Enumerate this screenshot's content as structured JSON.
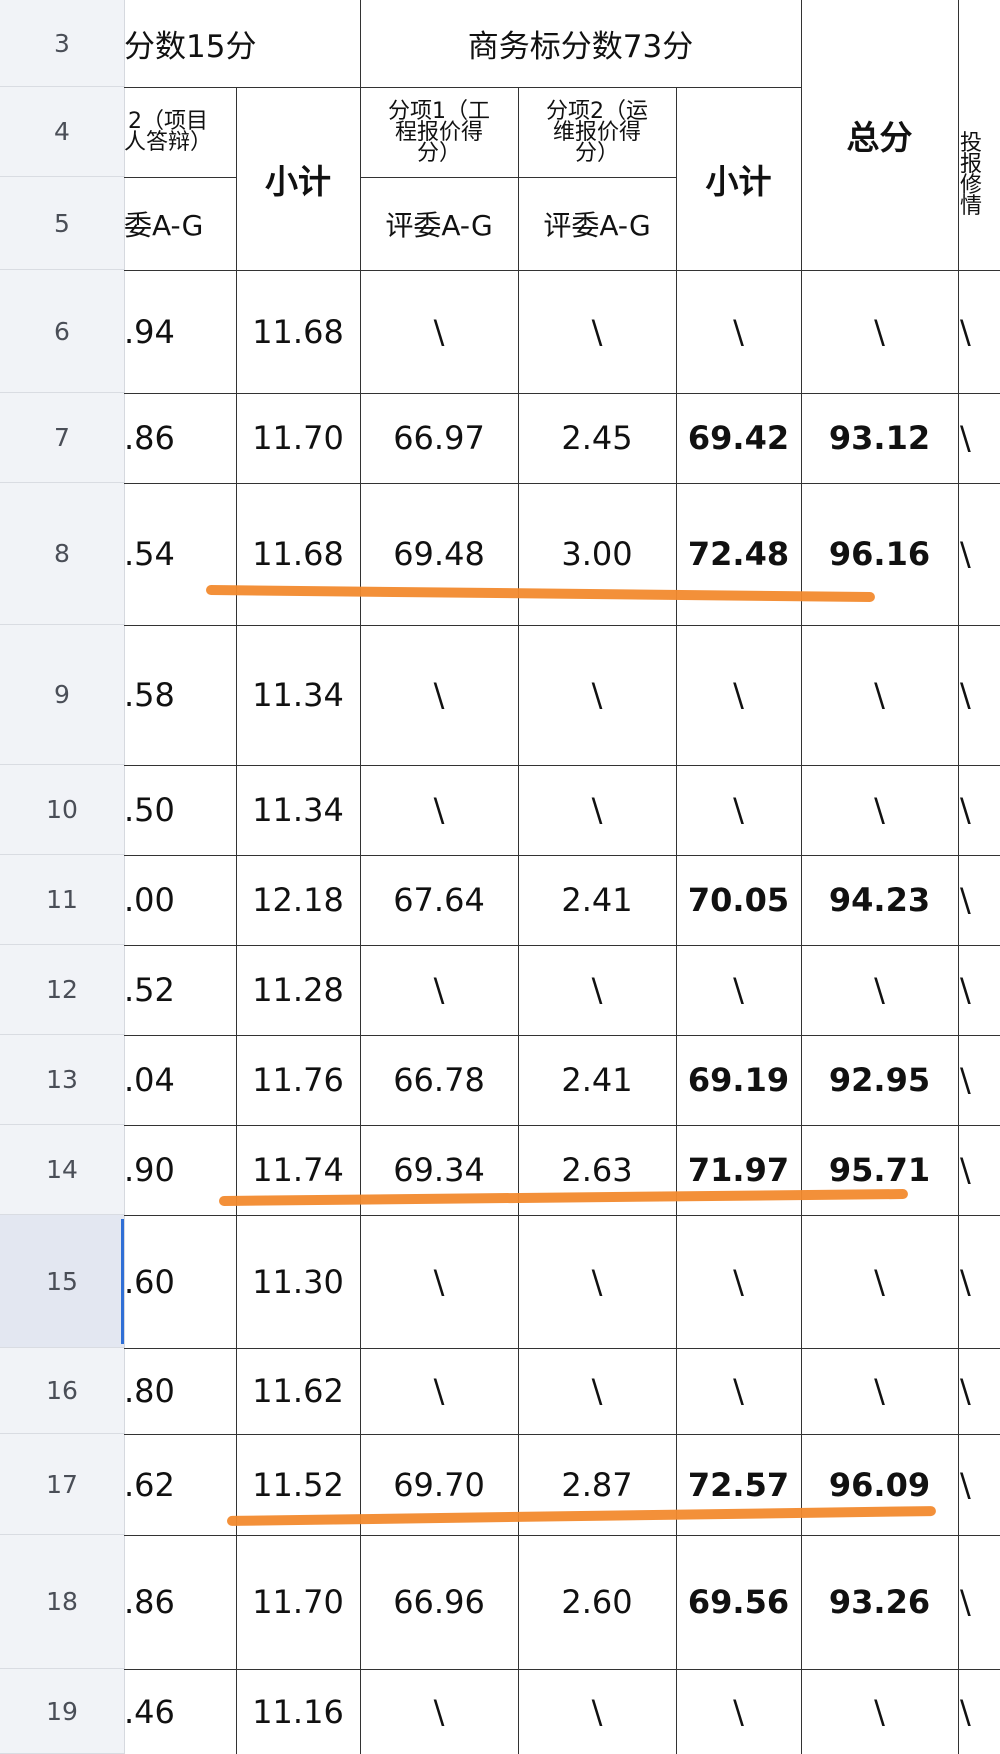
{
  "row_numbers": [
    "3",
    "4",
    "5",
    "6",
    "7",
    "8",
    "9",
    "10",
    "11",
    "12",
    "13",
    "14",
    "15",
    "16",
    "17",
    "18",
    "19"
  ],
  "selected_row": "15",
  "header": {
    "partial_score_group": "分数15分",
    "business_group": "商务标分数73分",
    "total": "总分",
    "partial_item2": "2（项目\n人答辩）",
    "subtotal": "小计",
    "item1": "分项1（工\n程报价得\n分）",
    "item2": "分项2（运\n维报价得\n分）",
    "last_col": "投\n报\n修\n情",
    "judges_partial": "委A-G",
    "judges": "评委A-G"
  },
  "rows": [
    {
      "row": "6",
      "a": ".94",
      "sub1": "11.68",
      "p1": "\\",
      "p2": "\\",
      "sub2": "\\",
      "total": "\\",
      "last": "\\"
    },
    {
      "row": "7",
      "a": ".86",
      "sub1": "11.70",
      "p1": "66.97",
      "p2": "2.45",
      "sub2": "69.42",
      "total": "93.12",
      "last": "\\"
    },
    {
      "row": "8",
      "a": ".54",
      "sub1": "11.68",
      "p1": "69.48",
      "p2": "3.00",
      "sub2": "72.48",
      "total": "96.16",
      "last": "\\"
    },
    {
      "row": "9",
      "a": ".58",
      "sub1": "11.34",
      "p1": "\\",
      "p2": "\\",
      "sub2": "\\",
      "total": "\\",
      "last": "\\"
    },
    {
      "row": "10",
      "a": ".50",
      "sub1": "11.34",
      "p1": "\\",
      "p2": "\\",
      "sub2": "\\",
      "total": "\\",
      "last": "\\"
    },
    {
      "row": "11",
      "a": ".00",
      "sub1": "12.18",
      "p1": "67.64",
      "p2": "2.41",
      "sub2": "70.05",
      "total": "94.23",
      "last": "\\"
    },
    {
      "row": "12",
      "a": ".52",
      "sub1": "11.28",
      "p1": "\\",
      "p2": "\\",
      "sub2": "\\",
      "total": "\\",
      "last": "\\"
    },
    {
      "row": "13",
      "a": ".04",
      "sub1": "11.76",
      "p1": "66.78",
      "p2": "2.41",
      "sub2": "69.19",
      "total": "92.95",
      "last": "\\"
    },
    {
      "row": "14",
      "a": ".90",
      "sub1": "11.74",
      "p1": "69.34",
      "p2": "2.63",
      "sub2": "71.97",
      "total": "95.71",
      "last": "\\"
    },
    {
      "row": "15",
      "a": ".60",
      "sub1": "11.30",
      "p1": "\\",
      "p2": "\\",
      "sub2": "\\",
      "total": "\\",
      "last": "\\"
    },
    {
      "row": "16",
      "a": ".80",
      "sub1": "11.62",
      "p1": "\\",
      "p2": "\\",
      "sub2": "\\",
      "total": "\\",
      "last": "\\"
    },
    {
      "row": "17",
      "a": ".62",
      "sub1": "11.52",
      "p1": "69.70",
      "p2": "2.87",
      "sub2": "72.57",
      "total": "96.09",
      "last": "\\"
    },
    {
      "row": "18",
      "a": ".86",
      "sub1": "11.70",
      "p1": "66.96",
      "p2": "2.60",
      "sub2": "69.56",
      "total": "93.26",
      "last": "\\"
    },
    {
      "row": "19",
      "a": ".46",
      "sub1": "11.16",
      "p1": "\\",
      "p2": "\\",
      "sub2": "\\",
      "total": "\\",
      "last": "\\"
    }
  ],
  "highlight_rows": [
    "8",
    "14",
    "17"
  ],
  "colors": {
    "grid": "#333333",
    "row_header_bg": "#f1f3f7",
    "selection": "#2f6fd6",
    "annotation_stroke": "#f28a2e"
  }
}
